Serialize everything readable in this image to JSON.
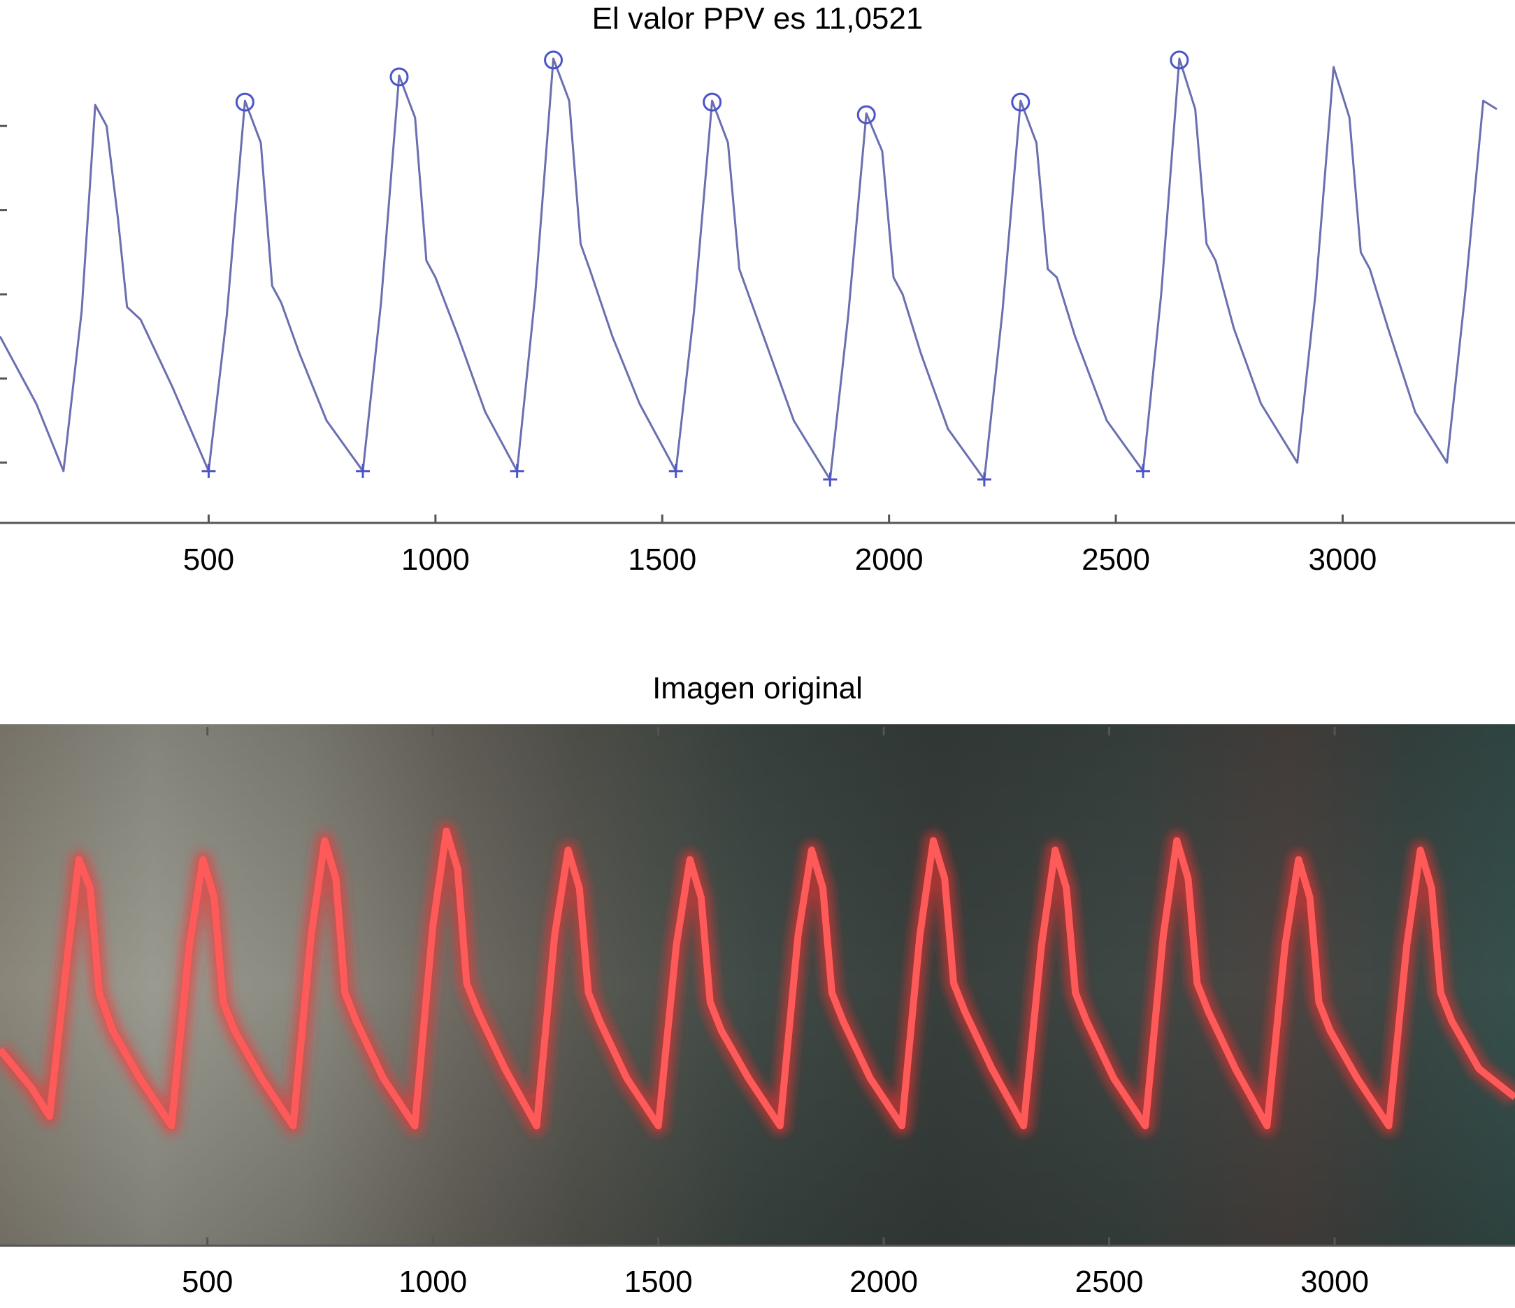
{
  "chart_data": [
    {
      "type": "line",
      "title": "El valor PPV es 11,0521",
      "xlabel": "",
      "ylabel": "",
      "xlim": [
        40,
        3380
      ],
      "ylim": [
        0,
        100
      ],
      "x_ticks": [
        500,
        1000,
        1500,
        2000,
        2500,
        3000
      ],
      "grid": false,
      "legend": "none",
      "line_color": "#6a6fb0",
      "marker_color": "#4b55c8",
      "series": [
        {
          "values": [
            [
              40,
              40
            ],
            [
              120,
              24
            ],
            [
              180,
              8
            ],
            [
              220,
              46
            ],
            [
              250,
              95
            ],
            [
              275,
              90
            ],
            [
              300,
              68
            ],
            [
              320,
              47
            ],
            [
              350,
              44
            ],
            [
              420,
              28
            ],
            [
              500,
              8
            ],
            [
              540,
              45
            ],
            [
              580,
              96
            ],
            [
              615,
              86
            ],
            [
              640,
              52
            ],
            [
              660,
              48
            ],
            [
              700,
              36
            ],
            [
              760,
              20
            ],
            [
              840,
              8
            ],
            [
              880,
              48
            ],
            [
              920,
              102
            ],
            [
              955,
              92
            ],
            [
              980,
              58
            ],
            [
              1000,
              54
            ],
            [
              1050,
              40
            ],
            [
              1110,
              22
            ],
            [
              1180,
              8
            ],
            [
              1220,
              50
            ],
            [
              1260,
              106
            ],
            [
              1295,
              96
            ],
            [
              1320,
              62
            ],
            [
              1340,
              56
            ],
            [
              1390,
              40
            ],
            [
              1450,
              24
            ],
            [
              1530,
              8
            ],
            [
              1570,
              46
            ],
            [
              1610,
              96
            ],
            [
              1645,
              86
            ],
            [
              1670,
              56
            ],
            [
              1690,
              50
            ],
            [
              1730,
              38
            ],
            [
              1790,
              20
            ],
            [
              1870,
              6
            ],
            [
              1910,
              45
            ],
            [
              1950,
              93
            ],
            [
              1985,
              84
            ],
            [
              2010,
              54
            ],
            [
              2030,
              50
            ],
            [
              2070,
              36
            ],
            [
              2130,
              18
            ],
            [
              2210,
              6
            ],
            [
              2250,
              46
            ],
            [
              2290,
              96
            ],
            [
              2325,
              86
            ],
            [
              2350,
              56
            ],
            [
              2370,
              54
            ],
            [
              2410,
              40
            ],
            [
              2480,
              20
            ],
            [
              2560,
              8
            ],
            [
              2600,
              50
            ],
            [
              2640,
              106
            ],
            [
              2675,
              94
            ],
            [
              2700,
              62
            ],
            [
              2720,
              58
            ],
            [
              2760,
              42
            ],
            [
              2820,
              24
            ],
            [
              2900,
              10
            ],
            [
              2940,
              50
            ],
            [
              2980,
              104
            ],
            [
              3015,
              92
            ],
            [
              3040,
              60
            ],
            [
              3060,
              56
            ],
            [
              3100,
              42
            ],
            [
              3160,
              22
            ],
            [
              3230,
              10
            ],
            [
              3270,
              50
            ],
            [
              3310,
              96
            ],
            [
              3340,
              94
            ]
          ]
        }
      ],
      "peaks": [
        [
          580,
          96
        ],
        [
          920,
          102
        ],
        [
          1260,
          106
        ],
        [
          1610,
          96
        ],
        [
          1950,
          93
        ],
        [
          2290,
          96
        ],
        [
          2640,
          106
        ]
      ],
      "troughs": [
        [
          500,
          8
        ],
        [
          840,
          8
        ],
        [
          1180,
          8
        ],
        [
          1530,
          8
        ],
        [
          1870,
          6
        ],
        [
          2210,
          6
        ],
        [
          2560,
          8
        ]
      ]
    },
    {
      "type": "line",
      "title": "Imagen original",
      "xlabel": "",
      "ylabel": "",
      "xlim": [
        40,
        3400
      ],
      "ylim": [
        0,
        100
      ],
      "x_ticks": [
        500,
        1000,
        1500,
        2000,
        2500,
        3000
      ],
      "grid": false,
      "legend": "none",
      "line_color": "#ff5a5a",
      "background": "photo",
      "series": [
        {
          "values": [
            [
              40,
              38
            ],
            [
              110,
              30
            ],
            [
              150,
              24
            ],
            [
              190,
              58
            ],
            [
              215,
              78
            ],
            [
              240,
              72
            ],
            [
              260,
              50
            ],
            [
              290,
              42
            ],
            [
              350,
              32
            ],
            [
              420,
              22
            ],
            [
              460,
              60
            ],
            [
              490,
              78
            ],
            [
              515,
              70
            ],
            [
              535,
              48
            ],
            [
              560,
              42
            ],
            [
              620,
              32
            ],
            [
              690,
              22
            ],
            [
              730,
              62
            ],
            [
              760,
              82
            ],
            [
              785,
              74
            ],
            [
              805,
              50
            ],
            [
              830,
              44
            ],
            [
              890,
              32
            ],
            [
              960,
              22
            ],
            [
              1000,
              64
            ],
            [
              1030,
              84
            ],
            [
              1055,
              76
            ],
            [
              1075,
              52
            ],
            [
              1100,
              46
            ],
            [
              1160,
              34
            ],
            [
              1230,
              22
            ],
            [
              1270,
              62
            ],
            [
              1300,
              80
            ],
            [
              1325,
              72
            ],
            [
              1345,
              50
            ],
            [
              1370,
              44
            ],
            [
              1430,
              32
            ],
            [
              1500,
              22
            ],
            [
              1540,
              60
            ],
            [
              1570,
              78
            ],
            [
              1595,
              70
            ],
            [
              1615,
              48
            ],
            [
              1640,
              42
            ],
            [
              1700,
              32
            ],
            [
              1770,
              22
            ],
            [
              1810,
              62
            ],
            [
              1840,
              80
            ],
            [
              1865,
              72
            ],
            [
              1885,
              50
            ],
            [
              1910,
              44
            ],
            [
              1970,
              32
            ],
            [
              2040,
              22
            ],
            [
              2080,
              62
            ],
            [
              2110,
              82
            ],
            [
              2135,
              74
            ],
            [
              2155,
              52
            ],
            [
              2180,
              46
            ],
            [
              2240,
              34
            ],
            [
              2310,
              22
            ],
            [
              2350,
              60
            ],
            [
              2380,
              80
            ],
            [
              2405,
              72
            ],
            [
              2425,
              50
            ],
            [
              2450,
              44
            ],
            [
              2510,
              32
            ],
            [
              2580,
              22
            ],
            [
              2620,
              62
            ],
            [
              2650,
              82
            ],
            [
              2675,
              74
            ],
            [
              2695,
              52
            ],
            [
              2720,
              46
            ],
            [
              2780,
              34
            ],
            [
              2850,
              22
            ],
            [
              2890,
              60
            ],
            [
              2920,
              78
            ],
            [
              2945,
              70
            ],
            [
              2965,
              48
            ],
            [
              2990,
              42
            ],
            [
              3050,
              32
            ],
            [
              3120,
              22
            ],
            [
              3160,
              60
            ],
            [
              3190,
              80
            ],
            [
              3215,
              72
            ],
            [
              3235,
              50
            ],
            [
              3260,
              44
            ],
            [
              3320,
              34
            ],
            [
              3400,
              28
            ]
          ]
        }
      ]
    }
  ]
}
